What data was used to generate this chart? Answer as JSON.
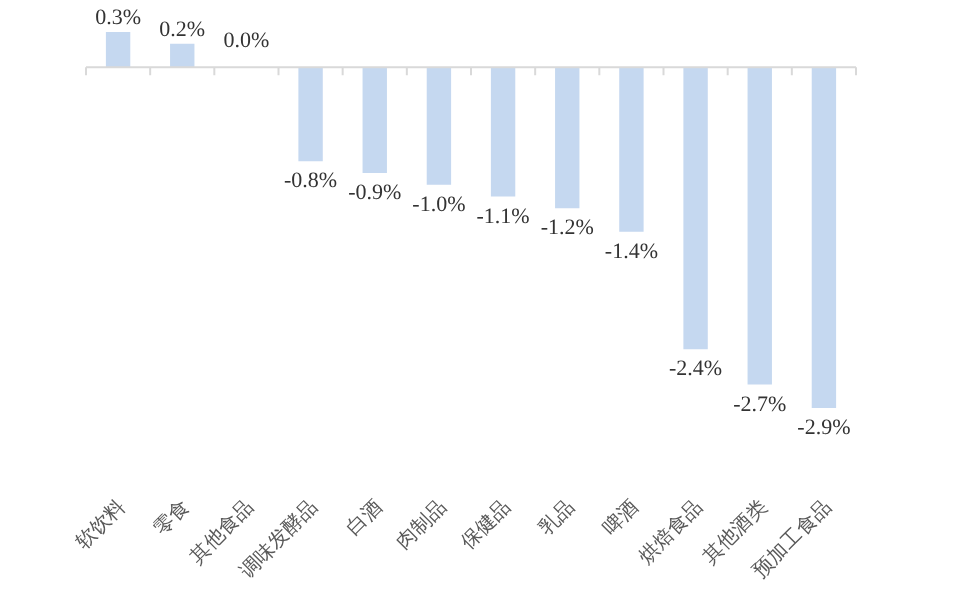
{
  "chart_data": {
    "type": "bar",
    "categories": [
      "软饮料",
      "零食",
      "其他食品",
      "调味发酵品",
      "白酒",
      "肉制品",
      "保健品",
      "乳品",
      "啤酒",
      "烘焙食品",
      "其他酒类",
      "预加工食品"
    ],
    "values": [
      0.3,
      0.2,
      0.0,
      -0.8,
      -0.9,
      -1.0,
      -1.1,
      -1.2,
      -1.4,
      -2.4,
      -2.7,
      -2.9
    ],
    "value_labels": [
      "0.3%",
      "0.2%",
      "0.0%",
      "-0.8%",
      "-0.9%",
      "-1.0%",
      "-1.1%",
      "-1.2%",
      "-1.4%",
      "-2.4%",
      "-2.7%",
      "-2.9%"
    ],
    "color": "#c5d8f0"
  }
}
